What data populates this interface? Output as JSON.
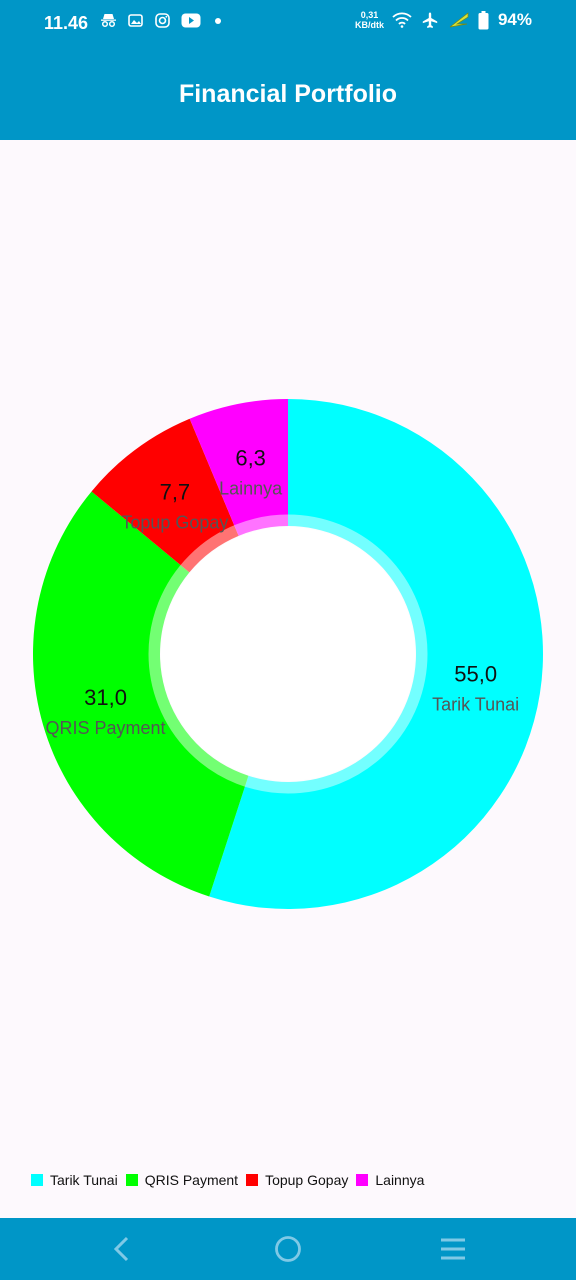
{
  "status_bar": {
    "time": "11.46",
    "net_speed_value": "0,31",
    "net_speed_unit": "KB/dtk",
    "battery": "94%",
    "icons": [
      "incognito-icon",
      "gallery-icon",
      "instagram-icon",
      "youtube-icon",
      "notification-dot-icon",
      "wifi-icon",
      "airplane-icon",
      "lightning-icon",
      "battery-icon"
    ]
  },
  "app_bar": {
    "title": "Financial Portfolio"
  },
  "chart_data": {
    "type": "pie",
    "variant": "donut",
    "categories": [
      "Tarik Tunai",
      "QRIS Payment",
      "Topup Gopay",
      "Lainnya"
    ],
    "values": [
      55.0,
      31.0,
      7.7,
      6.3
    ],
    "value_labels": [
      "55,0",
      "31,0",
      "7,7",
      "6,3"
    ],
    "colors": [
      "#00ffff",
      "#00ff00",
      "#ff0000",
      "#ff00ff"
    ],
    "start_angle": "12 o'clock",
    "direction": "clockwise",
    "legend_position": "bottom-left"
  },
  "nav_bar": {
    "icons": [
      "back-icon",
      "home-icon",
      "menu-icon"
    ]
  }
}
